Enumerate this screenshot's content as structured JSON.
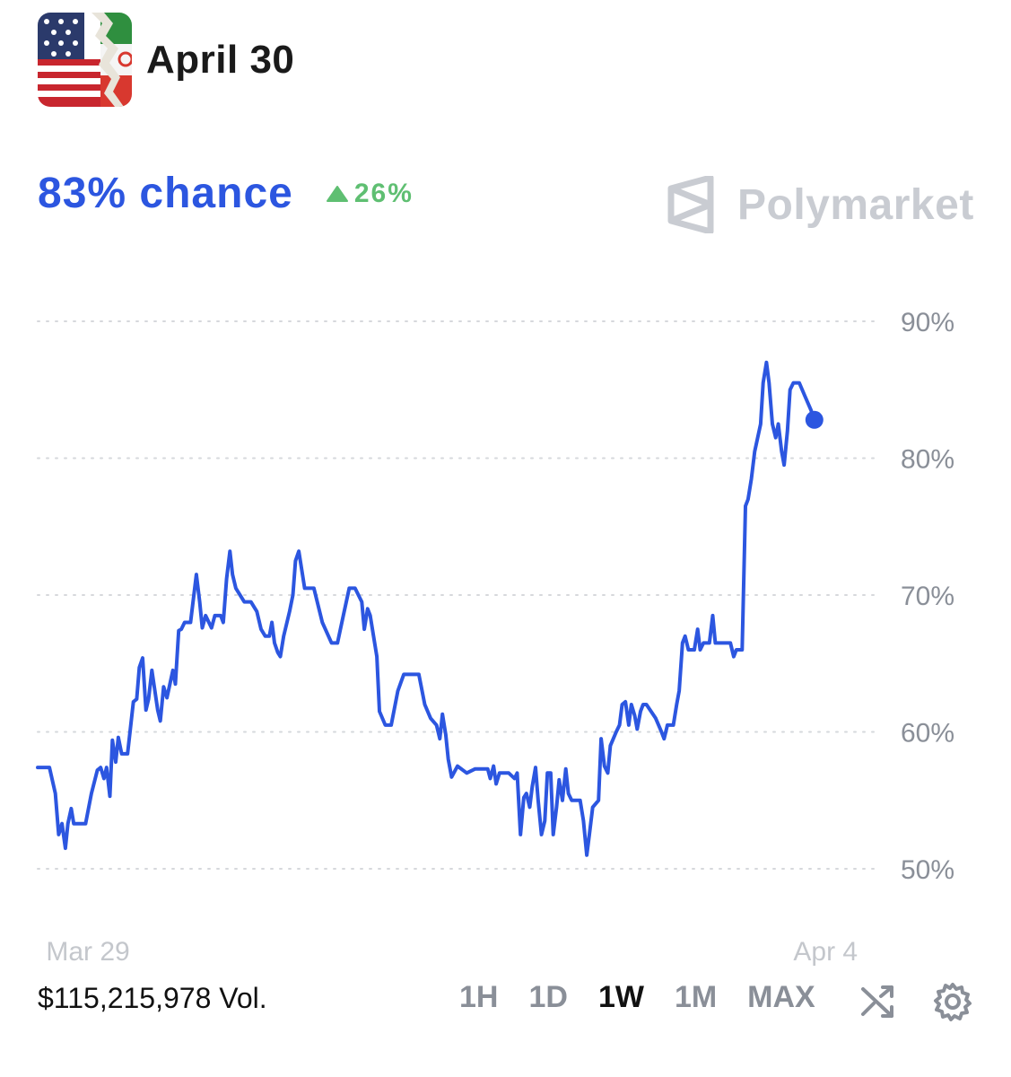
{
  "header": {
    "title": "April 30",
    "thumbnail_icon": "us-iran-flags-thumbnail"
  },
  "stats": {
    "chance": "83% chance",
    "change": "26%",
    "change_icon": "triangle-up-icon",
    "change_color": "#5fbf72"
  },
  "brand": {
    "name": "Polymarket",
    "logo_icon": "polymarket-logo-icon"
  },
  "colors": {
    "accent": "#2c56e0",
    "grid": "#d6d8dc",
    "axis_text": "#8a8f98"
  },
  "chart_data": {
    "type": "line",
    "title": "",
    "xlabel": "",
    "ylabel": "",
    "ylim": [
      50,
      90
    ],
    "y_ticks": [
      50,
      60,
      70,
      80,
      90
    ],
    "y_tick_labels": [
      "50%",
      "60%",
      "70%",
      "80%",
      "90%"
    ],
    "x_tick_labels": [
      {
        "label": "Mar 29",
        "t": 0.01
      },
      {
        "label": "Apr 4",
        "t": 0.9
      }
    ],
    "grid": true,
    "series": [
      {
        "values": [
          [
            0.0,
            57.4
          ],
          [
            0.014,
            57.4
          ],
          [
            0.021,
            55.5
          ],
          [
            0.025,
            52.5
          ],
          [
            0.029,
            53.3
          ],
          [
            0.033,
            51.5
          ],
          [
            0.036,
            53.3
          ],
          [
            0.04,
            54.4
          ],
          [
            0.043,
            53.3
          ],
          [
            0.057,
            53.3
          ],
          [
            0.064,
            55.5
          ],
          [
            0.071,
            57.2
          ],
          [
            0.075,
            57.4
          ],
          [
            0.079,
            56.6
          ],
          [
            0.082,
            57.4
          ],
          [
            0.086,
            55.3
          ],
          [
            0.089,
            59.4
          ],
          [
            0.093,
            57.8
          ],
          [
            0.096,
            59.6
          ],
          [
            0.1,
            58.4
          ],
          [
            0.107,
            58.4
          ],
          [
            0.114,
            62.2
          ],
          [
            0.118,
            62.4
          ],
          [
            0.121,
            64.7
          ],
          [
            0.125,
            65.4
          ],
          [
            0.129,
            61.6
          ],
          [
            0.132,
            62.4
          ],
          [
            0.136,
            64.5
          ],
          [
            0.143,
            61.6
          ],
          [
            0.146,
            60.8
          ],
          [
            0.15,
            63.3
          ],
          [
            0.154,
            62.5
          ],
          [
            0.161,
            64.5
          ],
          [
            0.164,
            63.5
          ],
          [
            0.168,
            67.4
          ],
          [
            0.171,
            67.5
          ],
          [
            0.175,
            68.0
          ],
          [
            0.182,
            68.0
          ],
          [
            0.189,
            71.5
          ],
          [
            0.193,
            69.5
          ],
          [
            0.196,
            67.6
          ],
          [
            0.2,
            68.5
          ],
          [
            0.207,
            67.6
          ],
          [
            0.211,
            68.5
          ],
          [
            0.218,
            68.5
          ],
          [
            0.221,
            68.0
          ],
          [
            0.225,
            71.2
          ],
          [
            0.229,
            73.2
          ],
          [
            0.232,
            71.5
          ],
          [
            0.236,
            70.5
          ],
          [
            0.246,
            69.5
          ],
          [
            0.254,
            69.5
          ],
          [
            0.261,
            68.8
          ],
          [
            0.266,
            67.5
          ],
          [
            0.271,
            67.0
          ],
          [
            0.276,
            67.0
          ],
          [
            0.279,
            68.0
          ],
          [
            0.282,
            66.5
          ],
          [
            0.286,
            65.8
          ],
          [
            0.289,
            65.5
          ],
          [
            0.293,
            67.0
          ],
          [
            0.3,
            68.8
          ],
          [
            0.304,
            70.0
          ],
          [
            0.307,
            72.5
          ],
          [
            0.311,
            73.2
          ],
          [
            0.318,
            70.5
          ],
          [
            0.329,
            70.5
          ],
          [
            0.339,
            68.0
          ],
          [
            0.35,
            66.5
          ],
          [
            0.357,
            66.5
          ],
          [
            0.364,
            68.5
          ],
          [
            0.371,
            70.5
          ],
          [
            0.378,
            70.5
          ],
          [
            0.386,
            69.5
          ],
          [
            0.389,
            67.5
          ],
          [
            0.393,
            69.0
          ],
          [
            0.396,
            68.5
          ],
          [
            0.4,
            67.0
          ],
          [
            0.404,
            65.5
          ],
          [
            0.407,
            61.5
          ],
          [
            0.414,
            60.5
          ],
          [
            0.421,
            60.5
          ],
          [
            0.429,
            63.0
          ],
          [
            0.436,
            64.2
          ],
          [
            0.454,
            64.2
          ],
          [
            0.461,
            62.0
          ],
          [
            0.468,
            61.0
          ],
          [
            0.475,
            60.5
          ],
          [
            0.479,
            59.5
          ],
          [
            0.482,
            61.3
          ],
          [
            0.486,
            59.8
          ],
          [
            0.489,
            58.0
          ],
          [
            0.493,
            56.7
          ],
          [
            0.5,
            57.5
          ],
          [
            0.511,
            57.0
          ],
          [
            0.521,
            57.3
          ],
          [
            0.536,
            57.3
          ],
          [
            0.539,
            56.6
          ],
          [
            0.543,
            57.5
          ],
          [
            0.546,
            56.2
          ],
          [
            0.55,
            57.0
          ],
          [
            0.561,
            57.0
          ],
          [
            0.568,
            56.6
          ],
          [
            0.571,
            57.0
          ],
          [
            0.575,
            52.5
          ],
          [
            0.579,
            55.2
          ],
          [
            0.582,
            55.5
          ],
          [
            0.586,
            54.5
          ],
          [
            0.589,
            56.0
          ],
          [
            0.593,
            57.4
          ],
          [
            0.596,
            55.0
          ],
          [
            0.6,
            52.5
          ],
          [
            0.604,
            53.5
          ],
          [
            0.607,
            57.0
          ],
          [
            0.611,
            57.0
          ],
          [
            0.614,
            52.5
          ],
          [
            0.618,
            54.5
          ],
          [
            0.621,
            56.5
          ],
          [
            0.625,
            55.0
          ],
          [
            0.629,
            57.3
          ],
          [
            0.632,
            55.5
          ],
          [
            0.636,
            55.0
          ],
          [
            0.646,
            55.0
          ],
          [
            0.65,
            53.5
          ],
          [
            0.654,
            51.0
          ],
          [
            0.657,
            52.5
          ],
          [
            0.661,
            54.5
          ],
          [
            0.668,
            55.0
          ],
          [
            0.671,
            59.5
          ],
          [
            0.675,
            57.5
          ],
          [
            0.679,
            57.0
          ],
          [
            0.682,
            59.0
          ],
          [
            0.689,
            60.0
          ],
          [
            0.693,
            60.5
          ],
          [
            0.696,
            62.0
          ],
          [
            0.7,
            62.2
          ],
          [
            0.704,
            60.5
          ],
          [
            0.707,
            62.0
          ],
          [
            0.711,
            61.2
          ],
          [
            0.714,
            60.2
          ],
          [
            0.718,
            61.5
          ],
          [
            0.721,
            62.0
          ],
          [
            0.725,
            62.0
          ],
          [
            0.736,
            61.0
          ],
          [
            0.743,
            60.0
          ],
          [
            0.746,
            59.5
          ],
          [
            0.75,
            60.5
          ],
          [
            0.757,
            60.5
          ],
          [
            0.761,
            62.0
          ],
          [
            0.764,
            63.0
          ],
          [
            0.768,
            66.5
          ],
          [
            0.771,
            67.0
          ],
          [
            0.775,
            66.0
          ],
          [
            0.782,
            66.0
          ],
          [
            0.786,
            67.5
          ],
          [
            0.789,
            66.0
          ],
          [
            0.793,
            66.5
          ],
          [
            0.8,
            66.5
          ],
          [
            0.804,
            68.5
          ],
          [
            0.807,
            66.5
          ],
          [
            0.814,
            66.5
          ],
          [
            0.825,
            66.5
          ],
          [
            0.829,
            65.5
          ],
          [
            0.832,
            66.0
          ],
          [
            0.839,
            66.0
          ],
          [
            0.843,
            76.5
          ],
          [
            0.846,
            77.0
          ],
          [
            0.85,
            78.5
          ],
          [
            0.854,
            80.5
          ],
          [
            0.861,
            82.5
          ],
          [
            0.864,
            85.5
          ],
          [
            0.868,
            87.0
          ],
          [
            0.871,
            85.5
          ],
          [
            0.875,
            82.5
          ],
          [
            0.879,
            81.5
          ],
          [
            0.882,
            82.5
          ],
          [
            0.886,
            80.5
          ],
          [
            0.889,
            79.5
          ],
          [
            0.893,
            82.0
          ],
          [
            0.896,
            85.0
          ],
          [
            0.9,
            85.5
          ],
          [
            0.907,
            85.5
          ],
          [
            0.914,
            84.5
          ],
          [
            0.921,
            83.5
          ],
          [
            0.925,
            82.8
          ]
        ]
      }
    ],
    "last_point": [
      0.925,
      82.8
    ]
  },
  "footer": {
    "volume": "$115,215,978 Vol.",
    "ranges": [
      "1H",
      "1D",
      "1W",
      "1M",
      "MAX"
    ],
    "active_range": "1W",
    "shuffle_icon": "shuffle-icon",
    "settings_icon": "gear-icon"
  }
}
